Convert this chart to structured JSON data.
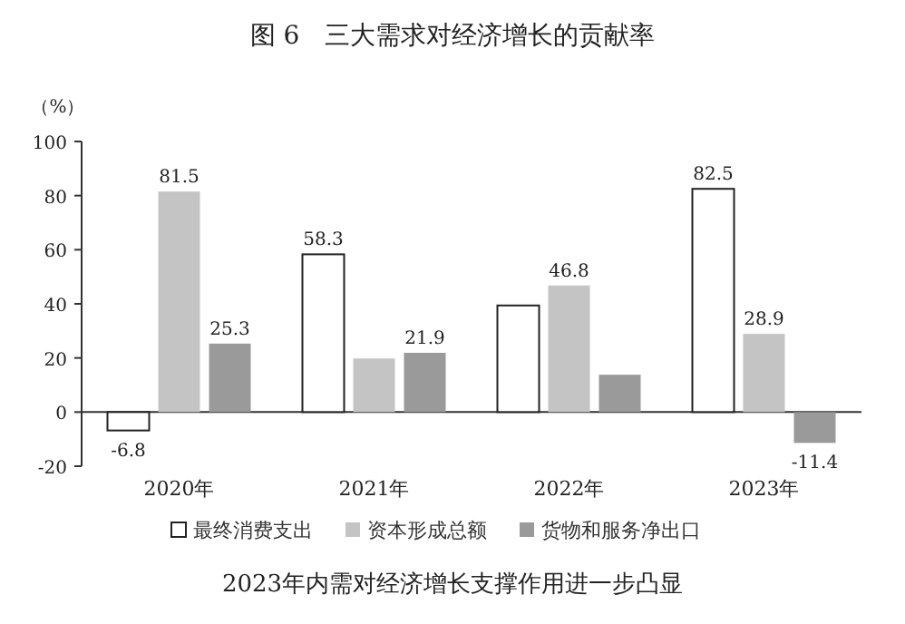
{
  "chart_data": {
    "type": "bar",
    "title": "图 6　三大需求对经济增长的贡献率",
    "ylabel": "（%）",
    "annotations": [
      "2023年内需对经济增长支撑作用进一步凸显"
    ],
    "categories": [
      "2020年",
      "2021年",
      "2022年",
      "2023年"
    ],
    "series": [
      {
        "name": "最终消费支出",
        "color": "#ffffff",
        "values": [
          -6.8,
          58.3,
          39.4,
          82.5
        ],
        "value_labels": [
          "-6.8",
          "58.3",
          null,
          "82.5"
        ]
      },
      {
        "name": "资本形成总额",
        "color": "#c4c4c4",
        "values": [
          81.5,
          19.8,
          46.8,
          28.9
        ],
        "value_labels": [
          "81.5",
          null,
          "46.8",
          "28.9"
        ]
      },
      {
        "name": "货物和服务净出口",
        "color": "#9a9a9a",
        "values": [
          25.3,
          21.9,
          13.8,
          -11.4
        ],
        "value_labels": [
          "25.3",
          "21.9",
          null,
          "-11.4"
        ]
      }
    ],
    "ylim": [
      -20,
      100
    ],
    "yticks": [
      -20,
      0,
      20,
      40,
      60,
      80,
      100
    ],
    "legend": "bottom"
  }
}
